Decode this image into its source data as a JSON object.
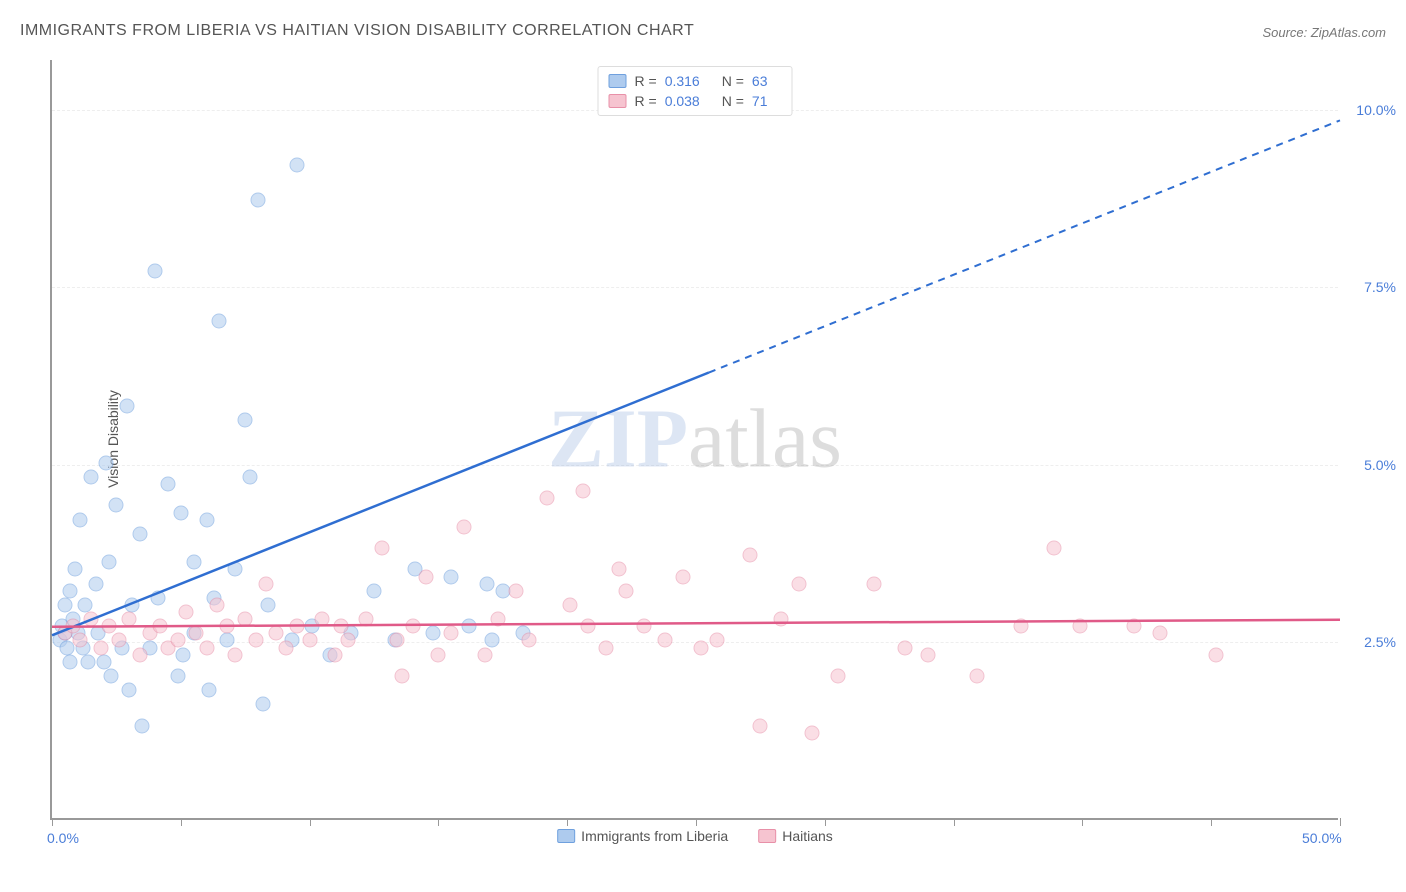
{
  "title": "IMMIGRANTS FROM LIBERIA VS HAITIAN VISION DISABILITY CORRELATION CHART",
  "source": "Source: ZipAtlas.com",
  "ylabel": "Vision Disability",
  "chart": {
    "type": "scatter",
    "xlim": [
      0,
      50
    ],
    "ylim": [
      0,
      10.7
    ],
    "xtick_values": [
      0,
      5,
      10,
      15,
      20,
      25,
      30,
      35,
      40,
      45,
      50
    ],
    "xtick_labels_show": {
      "0": "0.0%",
      "50": "50.0%"
    },
    "ytick_values": [
      2.5,
      5.0,
      7.5,
      10.0
    ],
    "ytick_labels": [
      "2.5%",
      "5.0%",
      "7.5%",
      "10.0%"
    ],
    "background_color": "#ffffff",
    "grid_color": "#eeeeee",
    "axis_color": "#999999",
    "tick_label_color": "#4a7dd8",
    "marker_radius": 7.5,
    "marker_opacity": 0.55,
    "series": [
      {
        "name": "Immigrants from Liberia",
        "color_fill": "#aecbee",
        "color_stroke": "#6fa0de",
        "trend_color": "#2f6ed1",
        "trend_width": 2.5,
        "R": 0.316,
        "N": 63,
        "trend": {
          "x1": 0,
          "y1": 2.6,
          "x2_solid": 25.5,
          "y2_solid": 6.3,
          "x2_dash": 50,
          "y2_dash": 9.85
        },
        "points": [
          [
            0.3,
            2.5
          ],
          [
            0.4,
            2.7
          ],
          [
            0.5,
            2.6
          ],
          [
            0.5,
            3.0
          ],
          [
            0.6,
            2.4
          ],
          [
            0.7,
            3.2
          ],
          [
            0.7,
            2.2
          ],
          [
            0.8,
            2.8
          ],
          [
            0.9,
            3.5
          ],
          [
            1.0,
            2.6
          ],
          [
            1.1,
            4.2
          ],
          [
            1.2,
            2.4
          ],
          [
            1.3,
            3.0
          ],
          [
            1.4,
            2.2
          ],
          [
            1.5,
            4.8
          ],
          [
            1.7,
            3.3
          ],
          [
            1.8,
            2.6
          ],
          [
            2.0,
            2.2
          ],
          [
            2.1,
            5.0
          ],
          [
            2.2,
            3.6
          ],
          [
            2.3,
            2.0
          ],
          [
            2.5,
            4.4
          ],
          [
            2.7,
            2.4
          ],
          [
            2.9,
            5.8
          ],
          [
            3.0,
            1.8
          ],
          [
            3.1,
            3.0
          ],
          [
            3.4,
            4.0
          ],
          [
            3.5,
            1.3
          ],
          [
            3.8,
            2.4
          ],
          [
            4.0,
            7.7
          ],
          [
            4.1,
            3.1
          ],
          [
            4.5,
            4.7
          ],
          [
            4.9,
            2.0
          ],
          [
            5.0,
            4.3
          ],
          [
            5.1,
            2.3
          ],
          [
            5.5,
            2.6
          ],
          [
            5.5,
            3.6
          ],
          [
            6.0,
            4.2
          ],
          [
            6.1,
            1.8
          ],
          [
            6.3,
            3.1
          ],
          [
            6.5,
            7.0
          ],
          [
            6.8,
            2.5
          ],
          [
            7.1,
            3.5
          ],
          [
            7.5,
            5.6
          ],
          [
            7.7,
            4.8
          ],
          [
            8.0,
            8.7
          ],
          [
            8.2,
            1.6
          ],
          [
            8.4,
            3.0
          ],
          [
            9.3,
            2.5
          ],
          [
            9.5,
            9.2
          ],
          [
            10.1,
            2.7
          ],
          [
            10.8,
            2.3
          ],
          [
            11.6,
            2.6
          ],
          [
            12.5,
            3.2
          ],
          [
            13.3,
            2.5
          ],
          [
            14.1,
            3.5
          ],
          [
            14.8,
            2.6
          ],
          [
            15.5,
            3.4
          ],
          [
            16.2,
            2.7
          ],
          [
            16.9,
            3.3
          ],
          [
            17.1,
            2.5
          ],
          [
            17.5,
            3.2
          ],
          [
            18.3,
            2.6
          ]
        ]
      },
      {
        "name": "Haitians",
        "color_fill": "#f6c4d0",
        "color_stroke": "#e890a8",
        "trend_color": "#e05a88",
        "trend_width": 2.5,
        "R": 0.038,
        "N": 71,
        "trend": {
          "x1": 0,
          "y1": 2.72,
          "x2_solid": 50,
          "y2_solid": 2.82,
          "x2_dash": 50,
          "y2_dash": 2.82
        },
        "points": [
          [
            0.5,
            2.6
          ],
          [
            0.8,
            2.7
          ],
          [
            1.1,
            2.5
          ],
          [
            1.5,
            2.8
          ],
          [
            1.9,
            2.4
          ],
          [
            2.2,
            2.7
          ],
          [
            2.6,
            2.5
          ],
          [
            3.0,
            2.8
          ],
          [
            3.4,
            2.3
          ],
          [
            3.8,
            2.6
          ],
          [
            4.2,
            2.7
          ],
          [
            4.5,
            2.4
          ],
          [
            4.9,
            2.5
          ],
          [
            5.2,
            2.9
          ],
          [
            5.6,
            2.6
          ],
          [
            6.0,
            2.4
          ],
          [
            6.4,
            3.0
          ],
          [
            6.8,
            2.7
          ],
          [
            7.1,
            2.3
          ],
          [
            7.5,
            2.8
          ],
          [
            7.9,
            2.5
          ],
          [
            8.3,
            3.3
          ],
          [
            8.7,
            2.6
          ],
          [
            9.1,
            2.4
          ],
          [
            9.5,
            2.7
          ],
          [
            10.0,
            2.5
          ],
          [
            10.5,
            2.8
          ],
          [
            11.0,
            2.3
          ],
          [
            11.2,
            2.7
          ],
          [
            11.5,
            2.5
          ],
          [
            12.2,
            2.8
          ],
          [
            12.8,
            3.8
          ],
          [
            13.4,
            2.5
          ],
          [
            13.6,
            2.0
          ],
          [
            14.0,
            2.7
          ],
          [
            14.5,
            3.4
          ],
          [
            15.0,
            2.3
          ],
          [
            15.5,
            2.6
          ],
          [
            16.0,
            4.1
          ],
          [
            16.8,
            2.3
          ],
          [
            17.3,
            2.8
          ],
          [
            18.0,
            3.2
          ],
          [
            18.5,
            2.5
          ],
          [
            19.2,
            4.5
          ],
          [
            20.1,
            3.0
          ],
          [
            20.6,
            4.6
          ],
          [
            20.8,
            2.7
          ],
          [
            21.5,
            2.4
          ],
          [
            22.0,
            3.5
          ],
          [
            22.3,
            3.2
          ],
          [
            23.0,
            2.7
          ],
          [
            23.8,
            2.5
          ],
          [
            24.5,
            3.4
          ],
          [
            25.2,
            2.4
          ],
          [
            25.8,
            2.5
          ],
          [
            27.1,
            3.7
          ],
          [
            27.5,
            1.3
          ],
          [
            28.3,
            2.8
          ],
          [
            29.0,
            3.3
          ],
          [
            29.5,
            1.2
          ],
          [
            30.5,
            2.0
          ],
          [
            31.9,
            3.3
          ],
          [
            33.1,
            2.4
          ],
          [
            34.0,
            2.3
          ],
          [
            35.9,
            2.0
          ],
          [
            37.6,
            2.7
          ],
          [
            38.9,
            3.8
          ],
          [
            39.9,
            2.7
          ],
          [
            42.0,
            2.7
          ],
          [
            43.0,
            2.6
          ],
          [
            45.2,
            2.3
          ]
        ]
      }
    ]
  },
  "watermark": {
    "text1": "ZIP",
    "text2": "atlas"
  },
  "legend_top_labels": {
    "R": "R =",
    "N": "N ="
  },
  "colors": {
    "title": "#555555",
    "source": "#777777"
  }
}
